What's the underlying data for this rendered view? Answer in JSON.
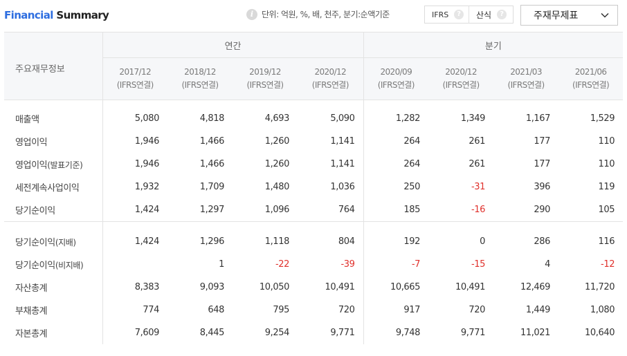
{
  "header": {
    "title_part1": "Financial",
    "title_part2": "Summary",
    "unit_note": "단위: 억원, %, 배, 천주, 분기:순액기준",
    "ifrs_label": "IFRS",
    "formula_label": "산식",
    "help_glyph": "?",
    "dropdown_value": "주재무제표"
  },
  "table": {
    "first_col_header": "주요재무정보",
    "group_annual": "연간",
    "group_quarter": "분기",
    "periods": [
      {
        "date": "2017/12",
        "basis": "(IFRS연결)"
      },
      {
        "date": "2018/12",
        "basis": "(IFRS연결)"
      },
      {
        "date": "2019/12",
        "basis": "(IFRS연결)"
      },
      {
        "date": "2020/12",
        "basis": "(IFRS연결)"
      },
      {
        "date": "2020/09",
        "basis": "(IFRS연결)"
      },
      {
        "date": "2020/12",
        "basis": "(IFRS연결)"
      },
      {
        "date": "2021/03",
        "basis": "(IFRS연결)"
      },
      {
        "date": "2021/06",
        "basis": "(IFRS연결)"
      }
    ],
    "rows": [
      {
        "label": "매출액",
        "label_suffix": "",
        "values": [
          "5,080",
          "4,818",
          "4,693",
          "5,090",
          "1,282",
          "1,349",
          "1,167",
          "1,529"
        ]
      },
      {
        "label": "영업이익",
        "label_suffix": "",
        "values": [
          "1,946",
          "1,466",
          "1,260",
          "1,141",
          "264",
          "261",
          "177",
          "110"
        ]
      },
      {
        "label": "영업이익",
        "label_suffix": "(발표기준)",
        "values": [
          "1,946",
          "1,466",
          "1,260",
          "1,141",
          "264",
          "261",
          "177",
          "110"
        ]
      },
      {
        "label": "세전계속사업이익",
        "label_suffix": "",
        "values": [
          "1,932",
          "1,709",
          "1,480",
          "1,036",
          "250",
          "-31",
          "396",
          "119"
        ]
      },
      {
        "label": "당기순이익",
        "label_suffix": "",
        "values": [
          "1,424",
          "1,297",
          "1,096",
          "764",
          "185",
          "-16",
          "290",
          "105"
        ]
      },
      {
        "label": "당기순이익",
        "label_suffix": "(지배)",
        "values": [
          "1,424",
          "1,296",
          "1,118",
          "804",
          "192",
          "0",
          "286",
          "116"
        ]
      },
      {
        "label": "당기순이익",
        "label_suffix": "(비지배)",
        "values": [
          "",
          "1",
          "-22",
          "-39",
          "-7",
          "-15",
          "4",
          "-12"
        ]
      },
      {
        "label": "자산총계",
        "label_suffix": "",
        "values": [
          "8,383",
          "9,093",
          "10,050",
          "10,491",
          "10,665",
          "10,491",
          "12,469",
          "11,720"
        ]
      },
      {
        "label": "부채총계",
        "label_suffix": "",
        "values": [
          "774",
          "648",
          "795",
          "720",
          "917",
          "720",
          "1,449",
          "1,080"
        ]
      },
      {
        "label": "자본총계",
        "label_suffix": "",
        "values": [
          "7,609",
          "8,445",
          "9,254",
          "9,771",
          "9,748",
          "9,771",
          "11,021",
          "10,640"
        ]
      }
    ],
    "negative_color": "#e0302b"
  }
}
